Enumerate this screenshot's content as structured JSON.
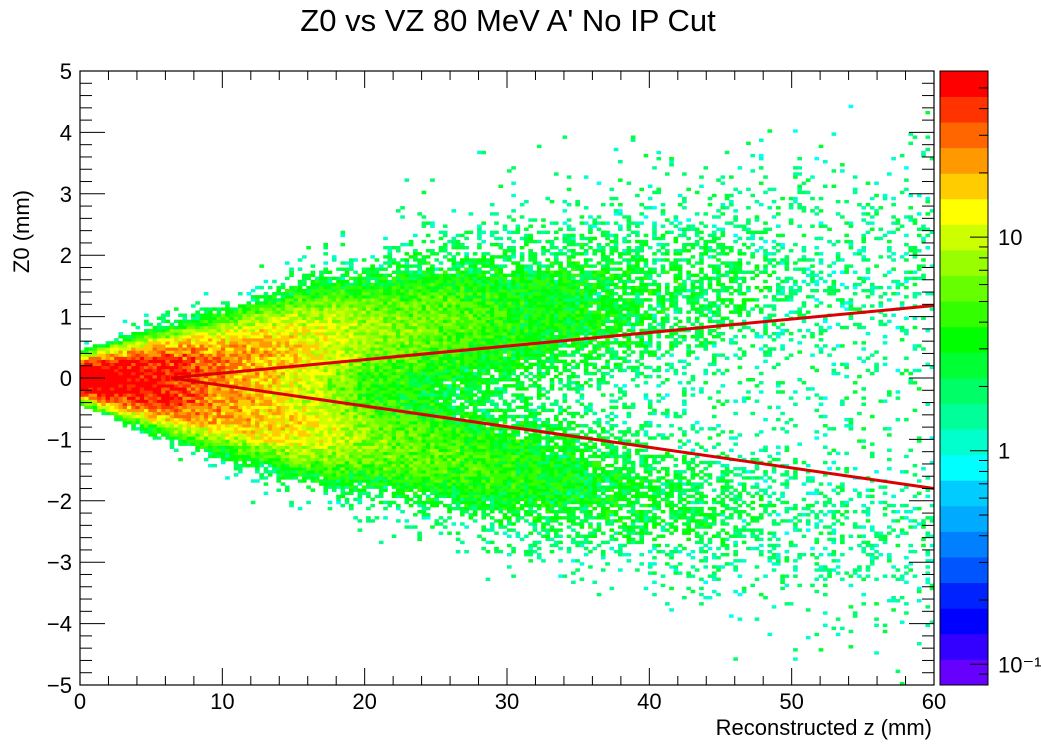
{
  "chart_data": {
    "type": "heatmap",
    "title": "Z0 vs VZ 80 MeV A'  No IP Cut",
    "xlabel": "Reconstructed z (mm)",
    "ylabel": "Z0 (mm)",
    "xlim": [
      0,
      60
    ],
    "ylim": [
      -5,
      5
    ],
    "x_ticks": [
      "0",
      "10",
      "20",
      "30",
      "40",
      "50",
      "60"
    ],
    "y_ticks": [
      "−5",
      "−4",
      "−3",
      "−2",
      "−1",
      "0",
      "1",
      "2",
      "3",
      "4",
      "5"
    ],
    "grid": false,
    "color_scale": {
      "log": true,
      "range": [
        0.08,
        60
      ],
      "tick_labels": [
        "10⁻¹",
        "1",
        "10"
      ],
      "tick_values": [
        0.1,
        1,
        10
      ],
      "palette": [
        "#6600ff",
        "#3300ff",
        "#0000ff",
        "#0022ff",
        "#0055ff",
        "#0080ff",
        "#00aaff",
        "#00ccff",
        "#00ffff",
        "#00ffcc",
        "#00ff99",
        "#00ff66",
        "#00ff33",
        "#00ff00",
        "#33ff00",
        "#66ff00",
        "#99ff00",
        "#ccff00",
        "#ffff00",
        "#ffcc00",
        "#ff9900",
        "#ff6600",
        "#ff3300",
        "#ff0000"
      ]
    },
    "density_bands": [
      {
        "name": "upper",
        "z": [
          0,
          10,
          20,
          30,
          40,
          50,
          60
        ],
        "y_center": [
          0.05,
          0.3,
          0.7,
          1.0,
          1.3,
          1.6,
          1.9
        ],
        "y_sigma": [
          0.15,
          0.35,
          0.6,
          0.75,
          0.9,
          1.0,
          1.1
        ],
        "peak_density": [
          60,
          25,
          8,
          4,
          2,
          0.9,
          0.6
        ]
      },
      {
        "name": "lower",
        "z": [
          0,
          10,
          20,
          30,
          40,
          50,
          60
        ],
        "y_center": [
          -0.05,
          -0.5,
          -1.0,
          -1.5,
          -1.9,
          -2.3,
          -2.6
        ],
        "y_sigma": [
          0.15,
          0.35,
          0.5,
          0.6,
          0.7,
          0.8,
          0.9
        ],
        "peak_density": [
          60,
          22,
          7,
          4,
          2,
          0.9,
          0.6
        ]
      }
    ],
    "cut_lines": [
      {
        "color": "#dd0000",
        "x": [
          6.4,
          60
        ],
        "y": [
          0,
          1.18
        ]
      },
      {
        "color": "#dd0000",
        "x": [
          6.4,
          60
        ],
        "y": [
          0,
          -1.8
        ]
      }
    ]
  }
}
